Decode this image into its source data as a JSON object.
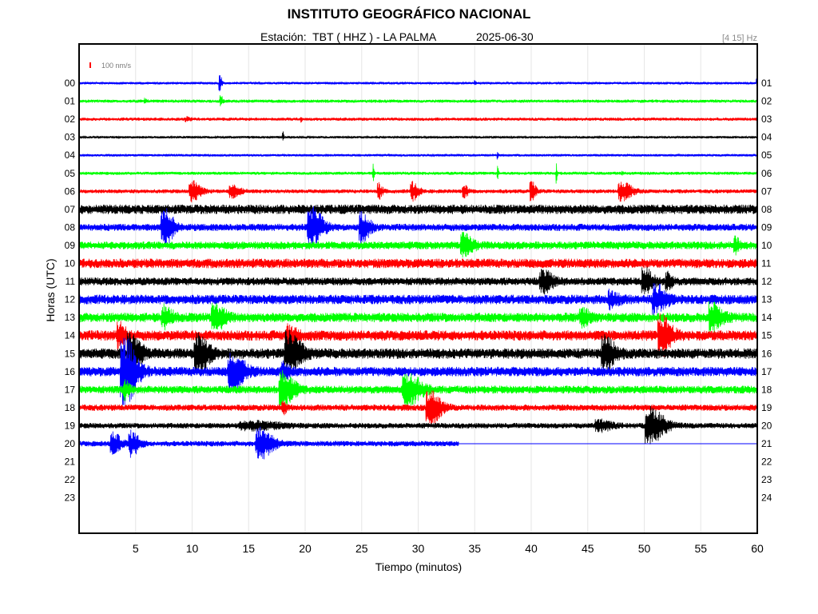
{
  "header": {
    "title": "INSTITUTO GEOGRÁFICO NACIONAL",
    "station_prefix": "Estación:",
    "station": "TBT ( HHZ ) - LA PALMA",
    "date": "2025-06-30",
    "filter": "[4 15] Hz"
  },
  "scale_label": "100 nm/s",
  "chart_data": {
    "type": "line",
    "title": "INSTITUTO GEOGRÁFICO NACIONAL",
    "xlabel": "Tiempo (minutos)",
    "ylabel": "Horas (UTC)",
    "xlim": [
      0,
      60
    ],
    "x_ticks": [
      "5",
      "10",
      "15",
      "20",
      "25",
      "30",
      "35",
      "40",
      "45",
      "50",
      "55",
      "60"
    ],
    "left_hour_labels": [
      "00",
      "01",
      "02",
      "03",
      "04",
      "05",
      "06",
      "07",
      "08",
      "09",
      "10",
      "11",
      "12",
      "13",
      "14",
      "15",
      "16",
      "17",
      "18",
      "19",
      "20",
      "21",
      "22",
      "23"
    ],
    "right_hour_labels": [
      "01",
      "02",
      "03",
      "04",
      "05",
      "06",
      "07",
      "08",
      "09",
      "10",
      "11",
      "12",
      "13",
      "14",
      "15",
      "16",
      "17",
      "18",
      "19",
      "20",
      "21",
      "22",
      "23",
      "24"
    ],
    "grid": true,
    "color_cycle": [
      "#0000ff",
      "#00ff00",
      "#ff0000",
      "#000000"
    ],
    "series": [
      {
        "hour": "00",
        "noise": 1.5,
        "end_minute": 60,
        "events": [
          [
            12.4,
            16,
            0.2
          ],
          [
            35.0,
            4,
            0.1
          ],
          [
            59.9,
            6,
            0.05
          ]
        ]
      },
      {
        "hour": "01",
        "noise": 2.0,
        "end_minute": 60,
        "events": [
          [
            12.5,
            8,
            0.2
          ],
          [
            5.8,
            3,
            0.2
          ]
        ]
      },
      {
        "hour": "02",
        "noise": 2.0,
        "end_minute": 60,
        "events": [
          [
            19.6,
            4,
            0.1
          ],
          [
            9.5,
            2,
            0.5
          ]
        ]
      },
      {
        "hour": "03",
        "noise": 1.5,
        "end_minute": 60,
        "events": [
          [
            18.0,
            9,
            0.1
          ]
        ]
      },
      {
        "hour": "04",
        "noise": 1.5,
        "end_minute": 60,
        "events": [
          [
            37.0,
            5,
            0.1
          ]
        ]
      },
      {
        "hour": "05",
        "noise": 2.0,
        "end_minute": 60,
        "events": [
          [
            26.0,
            12,
            0.1
          ],
          [
            37.0,
            9,
            0.1
          ],
          [
            42.2,
            12,
            0.1
          ],
          [
            48.0,
            3,
            0.1
          ]
        ]
      },
      {
        "hour": "06",
        "noise": 2.5,
        "end_minute": 60,
        "events": [
          [
            10.0,
            12,
            0.9
          ],
          [
            13.5,
            7,
            0.8
          ],
          [
            26.5,
            9,
            0.4
          ],
          [
            29.5,
            11,
            0.6
          ],
          [
            34.0,
            9,
            0.4
          ],
          [
            40.0,
            11,
            0.5
          ],
          [
            48.0,
            12,
            1.0
          ]
        ]
      },
      {
        "hour": "07",
        "noise": 6.0,
        "end_minute": 60,
        "events": []
      },
      {
        "hour": "08",
        "noise": 4.5,
        "end_minute": 60,
        "events": [
          [
            7.5,
            22,
            0.9
          ],
          [
            20.5,
            24,
            1.1
          ],
          [
            25.0,
            16,
            0.8
          ]
        ]
      },
      {
        "hour": "09",
        "noise": 5.0,
        "end_minute": 60,
        "events": [
          [
            34.0,
            12,
            0.9
          ],
          [
            58.0,
            9,
            0.4
          ]
        ]
      },
      {
        "hour": "10",
        "noise": 6.0,
        "end_minute": 60,
        "events": []
      },
      {
        "hour": "11",
        "noise": 5.0,
        "end_minute": 60,
        "events": [
          [
            41.0,
            12,
            1.0
          ],
          [
            50.0,
            15,
            0.8
          ],
          [
            52.0,
            10,
            0.5
          ]
        ]
      },
      {
        "hour": "12",
        "noise": 6.0,
        "end_minute": 60,
        "events": [
          [
            51.0,
            16,
            1.0
          ],
          [
            47.0,
            8,
            0.8
          ]
        ]
      },
      {
        "hour": "13",
        "noise": 6.0,
        "end_minute": 60,
        "events": [
          [
            7.5,
            12,
            0.8
          ],
          [
            12.0,
            14,
            1.0
          ],
          [
            44.5,
            8,
            0.8
          ],
          [
            56.0,
            16,
            1.0
          ]
        ]
      },
      {
        "hour": "14",
        "noise": 6.5,
        "end_minute": 60,
        "events": [
          [
            3.5,
            16,
            0.6
          ],
          [
            51.5,
            22,
            1.0
          ],
          [
            18.5,
            10,
            0.8
          ]
        ]
      },
      {
        "hour": "15",
        "noise": 6.5,
        "end_minute": 60,
        "events": [
          [
            4.5,
            25,
            1.0
          ],
          [
            10.5,
            20,
            1.1
          ],
          [
            18.5,
            24,
            1.2
          ],
          [
            46.5,
            18,
            1.0
          ]
        ]
      },
      {
        "hour": "16",
        "noise": 6.0,
        "end_minute": 60,
        "events": [
          [
            4.0,
            40,
            1.2
          ],
          [
            13.5,
            22,
            1.2
          ],
          [
            18.0,
            8,
            0.6
          ]
        ]
      },
      {
        "hour": "17",
        "noise": 5.0,
        "end_minute": 60,
        "events": [
          [
            18.0,
            20,
            1.1
          ],
          [
            29.0,
            18,
            1.4
          ],
          [
            4.0,
            14,
            0.4
          ]
        ]
      },
      {
        "hour": "18",
        "noise": 4.0,
        "end_minute": 60,
        "events": [
          [
            31.0,
            20,
            1.1
          ],
          [
            18.0,
            10,
            0.3
          ]
        ]
      },
      {
        "hour": "19",
        "noise": 3.5,
        "end_minute": 60,
        "events": [
          [
            50.5,
            22,
            1.4
          ],
          [
            46.0,
            6,
            1.2
          ],
          [
            15.0,
            4,
            3.0
          ]
        ]
      },
      {
        "hour": "20",
        "noise": 3.5,
        "end_minute": 33.6,
        "events": [
          [
            3.0,
            12,
            0.8
          ],
          [
            4.6,
            14,
            0.8
          ],
          [
            16.0,
            18,
            1.3
          ],
          [
            33.6,
            8,
            0.05
          ]
        ]
      }
    ]
  }
}
